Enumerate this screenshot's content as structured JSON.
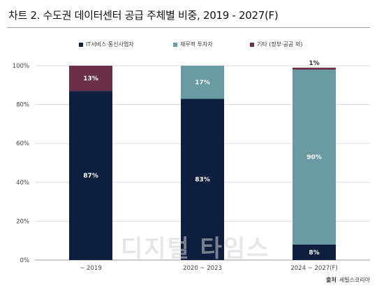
{
  "chart_data": {
    "type": "bar",
    "stacked": true,
    "title": "차트 2. 수도권 데이터센터 공급 주체별 비중, 2019 - 2027(F)",
    "categories": [
      "~ 2019",
      "2020 ~ 2023",
      "2024 ~ 2027(F)"
    ],
    "series": [
      {
        "name": "IT서비스·통신사업자",
        "color": "#0d1e3f",
        "values": [
          87,
          83,
          8
        ],
        "labels": [
          "87%",
          "83%",
          "8%"
        ],
        "label_color": "#ffffff"
      },
      {
        "name": "재무적 투자자",
        "color": "#6a9aa3",
        "values": [
          0,
          17,
          90
        ],
        "labels": [
          "",
          "17%",
          "90%"
        ],
        "label_color": "#ffffff"
      },
      {
        "name": "기타 (정부·공공 외)",
        "color": "#6b3049",
        "values": [
          13,
          0,
          1
        ],
        "labels": [
          "13%",
          "",
          "1%"
        ],
        "label_color": "#ffffff"
      }
    ],
    "ylim": [
      0,
      100
    ],
    "yticks": [
      "0%",
      "20%",
      "40%",
      "60%",
      "80%",
      "100%"
    ],
    "grid": true,
    "legend_position": "top"
  },
  "source": {
    "label": "출처",
    "text": "세빌스코리아"
  },
  "watermark": "디지털 타임스"
}
